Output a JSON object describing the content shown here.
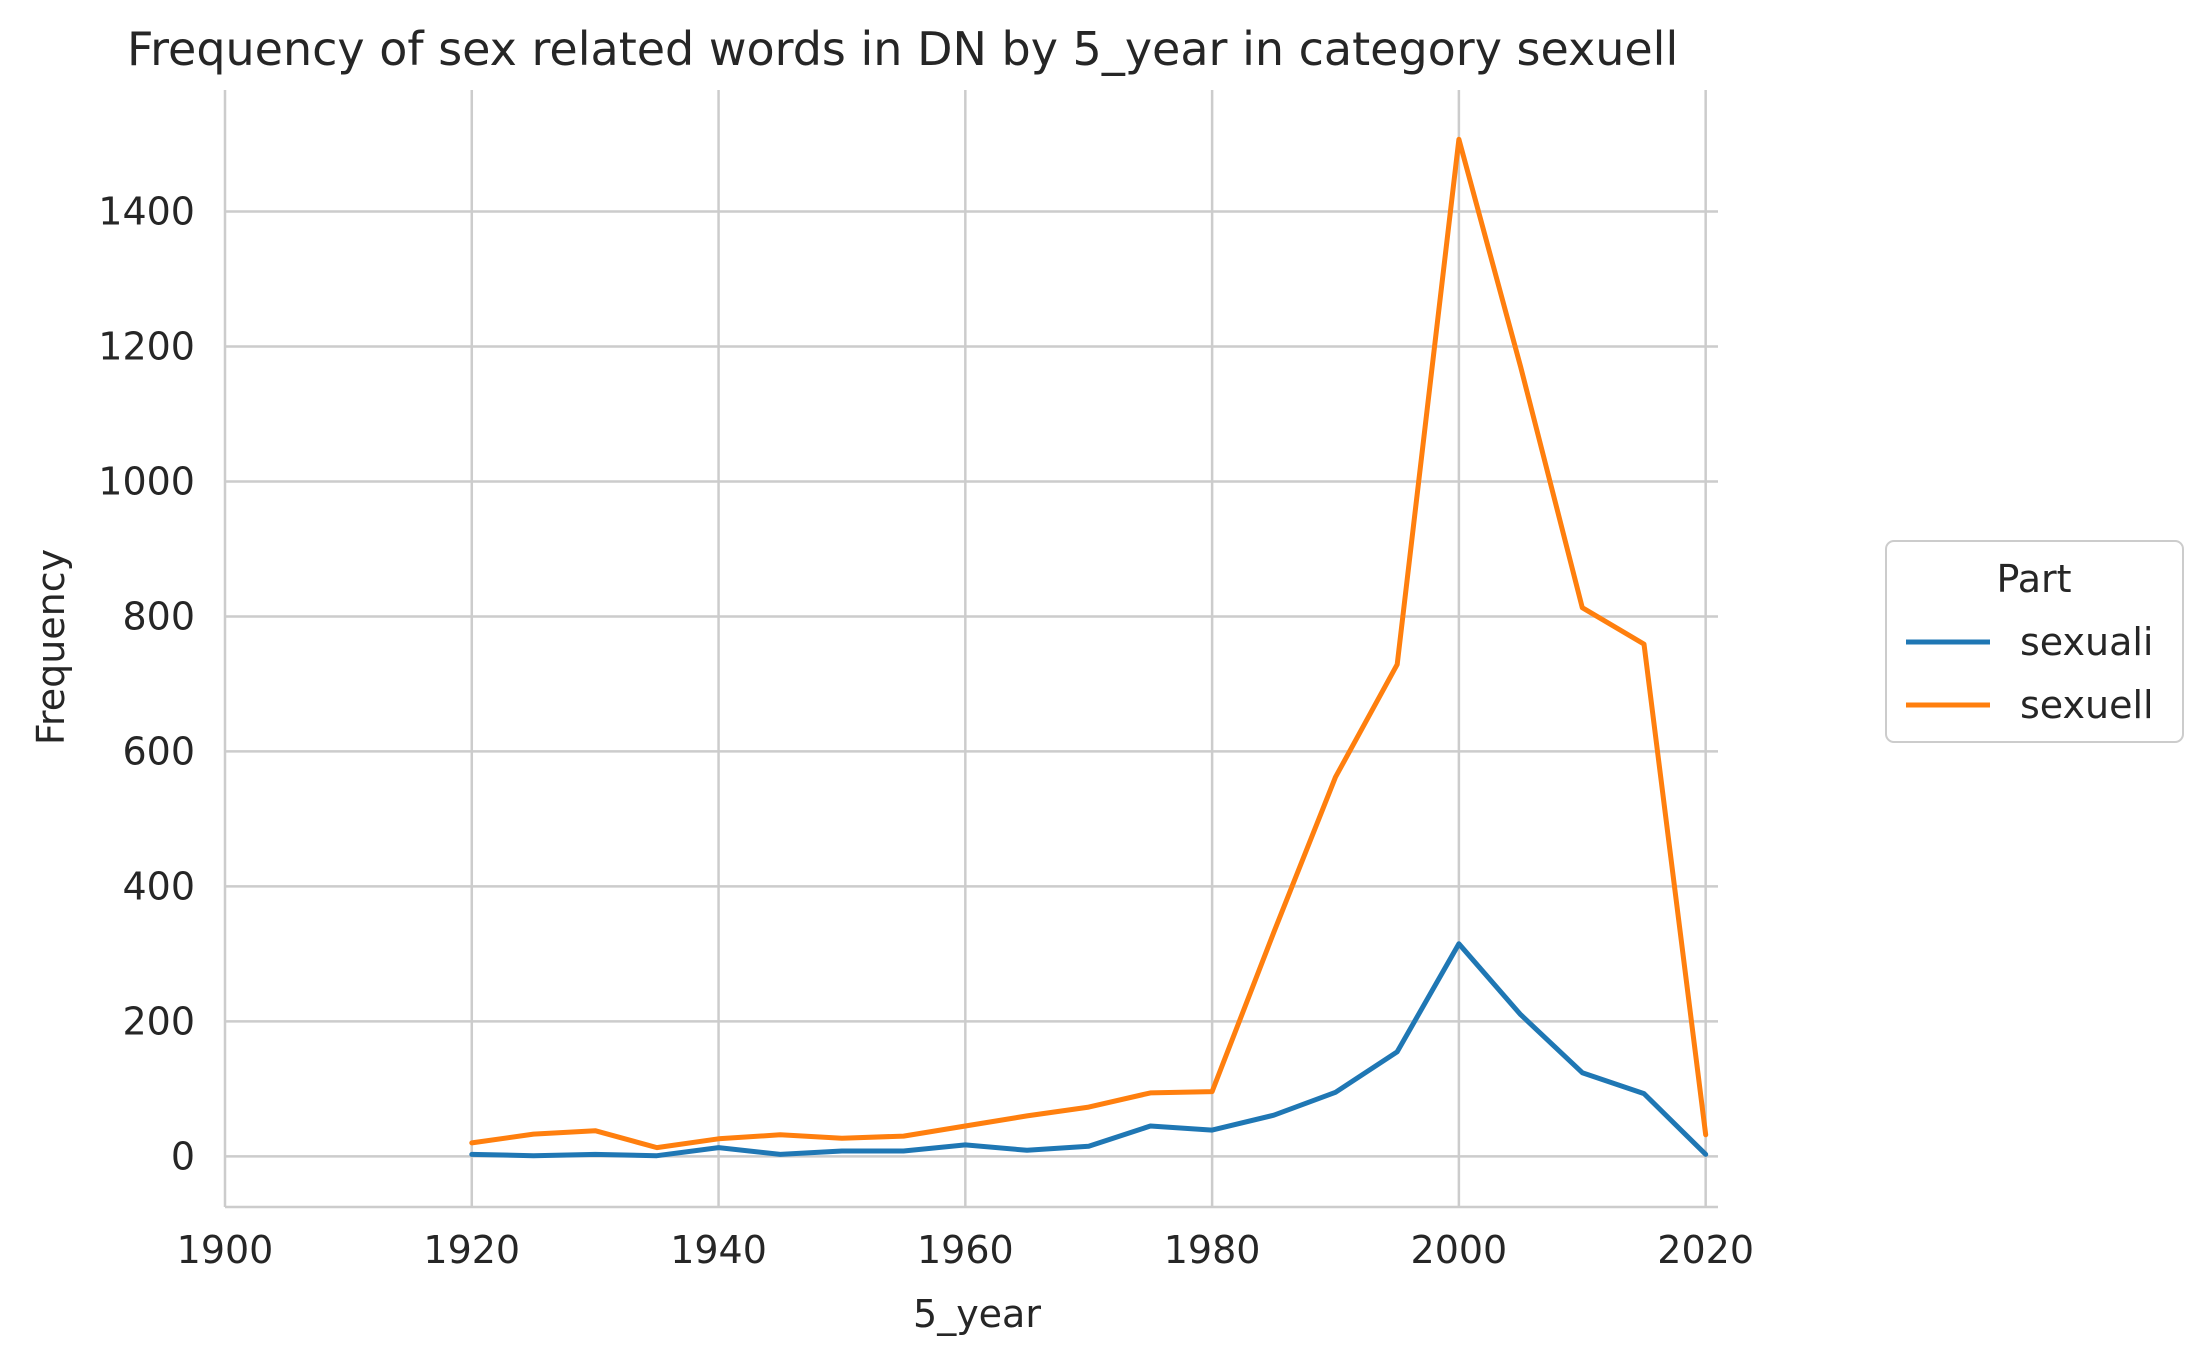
{
  "chart_data": {
    "type": "line",
    "title": "Frequency of sex related words in DN by 5_year in category sexuell",
    "xlabel": "5_year",
    "ylabel": "Frequency",
    "xlim": [
      1900,
      2021
    ],
    "ylim": [
      -75,
      1580
    ],
    "xticks": [
      1900,
      1920,
      1940,
      1960,
      1980,
      2000,
      2020
    ],
    "yticks": [
      0,
      200,
      400,
      600,
      800,
      1000,
      1200,
      1400
    ],
    "grid": true,
    "legend": {
      "title": "Part",
      "placement": "center-right outside"
    },
    "x": [
      1920,
      1925,
      1930,
      1935,
      1940,
      1945,
      1950,
      1955,
      1960,
      1965,
      1970,
      1975,
      1980,
      1985,
      1990,
      1995,
      2000,
      2005,
      2010,
      2015,
      2020
    ],
    "series": [
      {
        "name": "sexuali",
        "color": "#1f77b4",
        "values": [
          3,
          1,
          3,
          1,
          13,
          3,
          8,
          8,
          17,
          9,
          15,
          45,
          39,
          61,
          95,
          155,
          315,
          210,
          124,
          93,
          3
        ]
      },
      {
        "name": "sexuell",
        "color": "#ff7f0e",
        "values": [
          20,
          33,
          38,
          13,
          26,
          32,
          27,
          30,
          45,
          60,
          73,
          94,
          96,
          332,
          562,
          729,
          1507,
          1170,
          813,
          759,
          32
        ]
      }
    ]
  }
}
